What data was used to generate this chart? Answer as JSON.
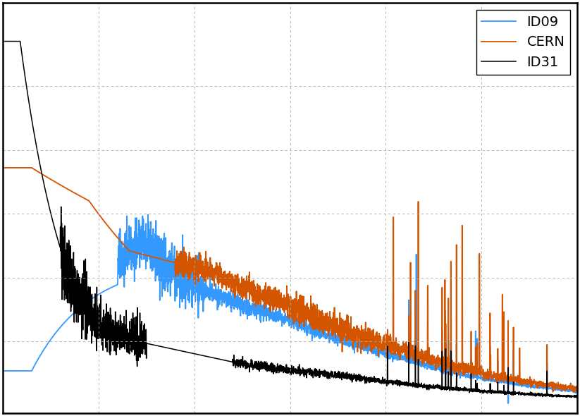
{
  "legend_labels": [
    "ID09",
    "CERN",
    "ID31"
  ],
  "legend_colors": [
    "#3399FF",
    "#D45500",
    "#000000"
  ],
  "background_color": "#ffffff",
  "grid_color": "#aaaaaa",
  "legend_fontsize": 14
}
